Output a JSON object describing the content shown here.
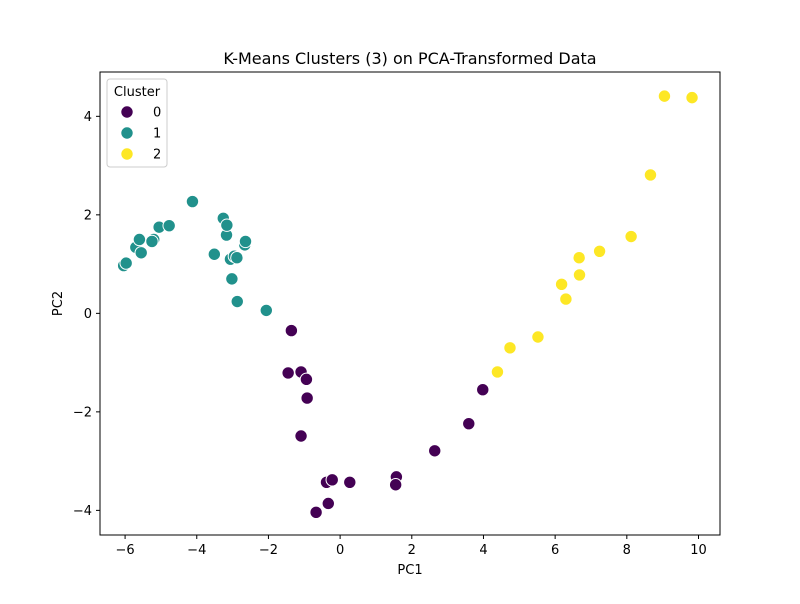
{
  "chart_data": {
    "type": "scatter",
    "title": "K-Means Clusters (3) on PCA-Transformed Data",
    "xlabel": "PC1",
    "ylabel": "PC2",
    "xlim": [
      -6.7,
      10.6
    ],
    "ylim": [
      -4.5,
      4.9
    ],
    "xticks": [
      -6,
      -4,
      -2,
      0,
      2,
      4,
      6,
      8,
      10
    ],
    "yticks": [
      -4,
      -2,
      0,
      2,
      4
    ],
    "xtick_labels": [
      "−6",
      "−4",
      "−2",
      "0",
      "2",
      "4",
      "6",
      "8",
      "10"
    ],
    "ytick_labels": [
      "−4",
      "−2",
      "0",
      "2",
      "4"
    ],
    "grid": false,
    "legend": {
      "title": "Cluster",
      "placement": "top-left",
      "entries": [
        "0",
        "1",
        "2"
      ]
    },
    "series": [
      {
        "name": "0",
        "color": "#440154",
        "points": [
          [
            -1.36,
            -0.35
          ],
          [
            -1.45,
            -1.21
          ],
          [
            -1.09,
            -1.19
          ],
          [
            -0.94,
            -1.34
          ],
          [
            -0.92,
            -1.72
          ],
          [
            -1.09,
            -2.49
          ],
          [
            -0.38,
            -3.43
          ],
          [
            -0.22,
            -3.38
          ],
          [
            0.27,
            -3.43
          ],
          [
            -0.33,
            -3.86
          ],
          [
            -0.67,
            -4.04
          ],
          [
            1.57,
            -3.32
          ],
          [
            1.55,
            -3.48
          ],
          [
            2.64,
            -2.79
          ],
          [
            3.59,
            -2.24
          ],
          [
            3.98,
            -1.55
          ]
        ]
      },
      {
        "name": "1",
        "color": "#21918c",
        "points": [
          [
            -6.04,
            0.97
          ],
          [
            -5.97,
            1.02
          ],
          [
            -5.7,
            1.34
          ],
          [
            -5.6,
            1.5
          ],
          [
            -5.55,
            1.23
          ],
          [
            -5.2,
            1.5
          ],
          [
            -5.25,
            1.46
          ],
          [
            -5.05,
            1.75
          ],
          [
            -4.77,
            1.78
          ],
          [
            -4.12,
            2.27
          ],
          [
            -3.51,
            1.2
          ],
          [
            -3.26,
            1.93
          ],
          [
            -3.17,
            1.59
          ],
          [
            -3.16,
            1.79
          ],
          [
            -3.06,
            1.1
          ],
          [
            -2.95,
            1.16
          ],
          [
            -2.88,
            1.13
          ],
          [
            -3.02,
            0.7
          ],
          [
            -2.87,
            0.24
          ],
          [
            -2.66,
            1.39
          ],
          [
            -2.64,
            1.46
          ],
          [
            -2.06,
            0.06
          ]
        ]
      },
      {
        "name": "2",
        "color": "#fde725",
        "points": [
          [
            4.39,
            -1.19
          ],
          [
            4.74,
            -0.7
          ],
          [
            5.52,
            -0.48
          ],
          [
            6.18,
            0.59
          ],
          [
            6.3,
            0.29
          ],
          [
            6.67,
            1.13
          ],
          [
            6.68,
            0.78
          ],
          [
            7.24,
            1.26
          ],
          [
            8.12,
            1.56
          ],
          [
            8.66,
            2.81
          ],
          [
            9.05,
            4.41
          ],
          [
            9.82,
            4.38
          ]
        ]
      }
    ]
  }
}
